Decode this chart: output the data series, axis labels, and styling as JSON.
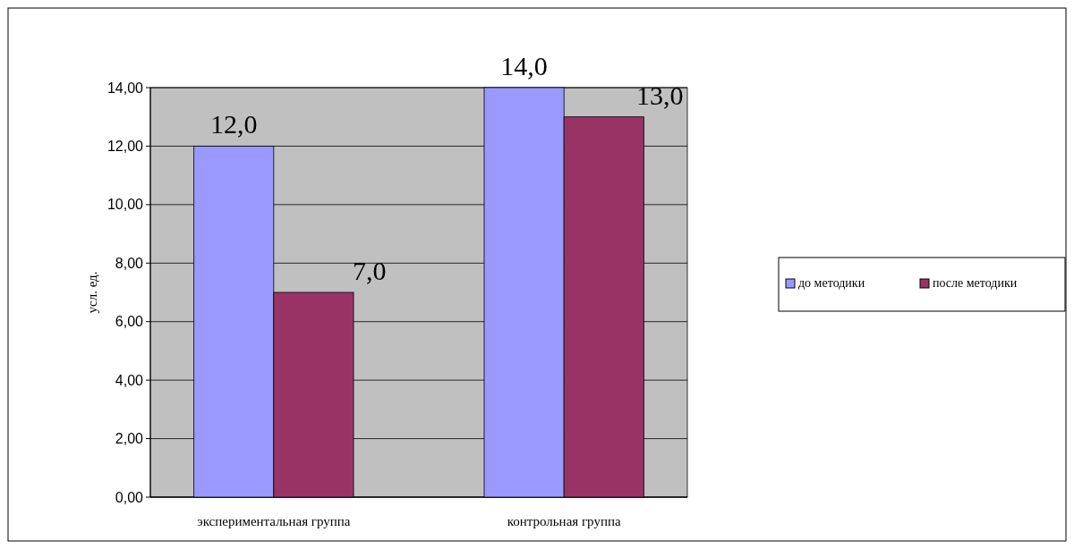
{
  "chart_data": {
    "type": "bar",
    "ylabel": "усл. ед.",
    "categories": [
      "экспериментальная группа",
      "контрольная группа"
    ],
    "series": [
      {
        "name": "до методики",
        "color": "#9999ff",
        "values": [
          12,
          14
        ],
        "value_labels": [
          "12,0",
          "14,0"
        ]
      },
      {
        "name": "после методики",
        "color": "#993366",
        "values": [
          7,
          13
        ],
        "value_labels": [
          "7,0",
          "13,0"
        ]
      }
    ],
    "ylim": [
      0,
      14
    ],
    "yticks": [
      {
        "value": 0,
        "label": "0,00"
      },
      {
        "value": 2,
        "label": "2,00"
      },
      {
        "value": 4,
        "label": "4,00"
      },
      {
        "value": 6,
        "label": "6,00"
      },
      {
        "value": 8,
        "label": "8,00"
      },
      {
        "value": 10,
        "label": "10,00"
      },
      {
        "value": 12,
        "label": "12,00"
      },
      {
        "value": 14,
        "label": "14,00"
      }
    ],
    "grid": "y",
    "legend": "right"
  }
}
